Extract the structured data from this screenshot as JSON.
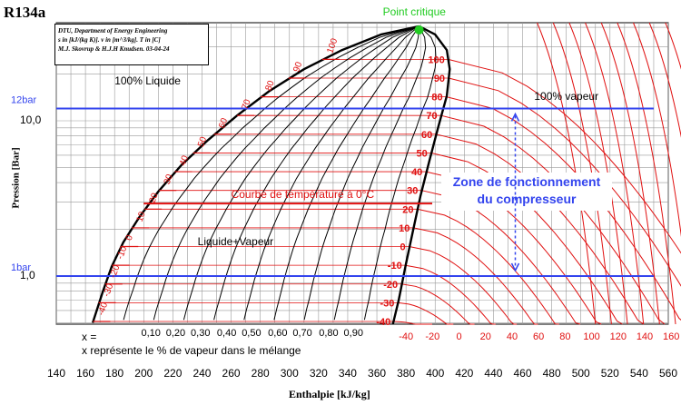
{
  "chart_data": {
    "type": "line",
    "title": "R134a",
    "xlabel": "Enthalpie [kJ/kg]",
    "ylabel": "Pression [Bar]",
    "xlim": [
      140,
      560
    ],
    "x_ticks": [
      "140",
      "160",
      "180",
      "200",
      "220",
      "240",
      "260",
      "280",
      "300",
      "320",
      "340",
      "360",
      "380",
      "400",
      "420",
      "440",
      "460",
      "480",
      "500",
      "520",
      "540",
      "560"
    ],
    "y_scale": "log",
    "y_ticks": [
      "10,0",
      "1,0"
    ],
    "info_box": [
      "DTU, Department of Energy Engineering",
      "s in [kJ/(kg K)]. v in [m^3/kg]. T in [C]",
      "M.J. Skovrup & H.J.H Knudsen. 03-04-24"
    ],
    "critical_point": {
      "label": "Point critique",
      "h": 389,
      "p": 40.6
    },
    "saturation_dome": {
      "liquid": [
        [
          165,
          0.5
        ],
        [
          172,
          0.8
        ],
        [
          178,
          1.15
        ],
        [
          186,
          1.65
        ],
        [
          197,
          2.4
        ],
        [
          210,
          3.5
        ],
        [
          226,
          5.2
        ],
        [
          244,
          7.5
        ],
        [
          264,
          10.8
        ],
        [
          286,
          15.5
        ],
        [
          310,
          21.5
        ],
        [
          336,
          28.5
        ],
        [
          363,
          36
        ],
        [
          389,
          40.6
        ]
      ],
      "vapour": [
        [
          389,
          40.6
        ],
        [
          400,
          36
        ],
        [
          408,
          28.5
        ],
        [
          410,
          21.5
        ],
        [
          408,
          14.5
        ],
        [
          402,
          9.0
        ],
        [
          396,
          5.5
        ],
        [
          390,
          3.3
        ],
        [
          385,
          2.0
        ],
        [
          380,
          1.2
        ],
        [
          375,
          0.7
        ],
        [
          371,
          0.45
        ]
      ]
    },
    "quality_lines": [
      "0,10",
      "0,20",
      "0,30",
      "0,40",
      "0,50",
      "0,60",
      "0,70",
      "0,80",
      "0,90"
    ],
    "quality_axis_label": "x = ",
    "saturation_temp_labels": [
      "-40",
      "-30",
      "-20",
      "-10",
      "0",
      "10",
      "20",
      "30",
      "40",
      "50",
      "60",
      "70",
      "80",
      "90",
      "100"
    ],
    "isotherm_labels_vapour": [
      "-40",
      "-30",
      "-20",
      "-10",
      "0",
      "10",
      "20",
      "30",
      "40",
      "50",
      "60",
      "70",
      "80",
      "90",
      "100"
    ],
    "isotherm_axis_labels": [
      "-40",
      "-20",
      "0",
      "20",
      "40",
      "60",
      "80",
      "100",
      "120",
      "140",
      "160"
    ],
    "series": [
      {
        "name": "12bar",
        "p": 12,
        "h_range": [
          140,
          550
        ]
      },
      {
        "name": "1bar",
        "p": 1,
        "h_range": [
          140,
          550
        ]
      },
      {
        "name": "Courbe de température à 0°C",
        "p": 2.93,
        "h_range": [
          200,
          398
        ]
      }
    ],
    "region_labels": [
      "100% Liquide",
      "Liquide+Vapeur",
      "100% vapeur"
    ],
    "annotations": [
      "Zone de fonctionnement",
      "du compresseur"
    ],
    "note": "x représente le % de vapeur dans le mélange",
    "colors": {
      "blue": "#3344ee",
      "red": "#e01010",
      "green": "#22cc22",
      "black": "#000000"
    }
  }
}
